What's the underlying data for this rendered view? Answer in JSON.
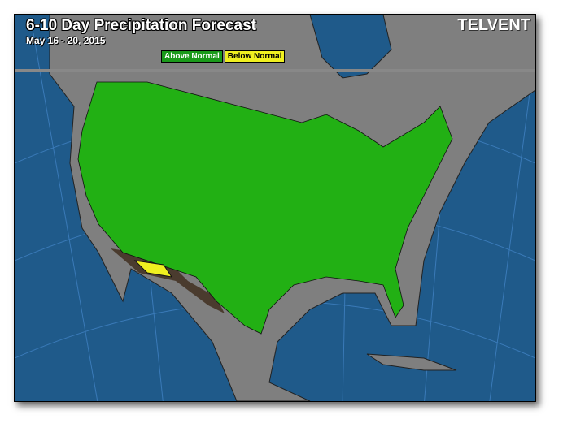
{
  "header": {
    "title": "6-10 Day Precipitation Forecast",
    "date_range": "May 16 - 20, 2015",
    "logo": "TELVENT"
  },
  "legend": [
    {
      "label": "Above Normal",
      "color": "#1a9a1a"
    },
    {
      "label": "Below Normal",
      "color": "#f0f020"
    }
  ],
  "colors": {
    "ocean": "#1f5a8a",
    "land": "#7f7f7f",
    "above_normal": "#22b014",
    "below_normal": "#f0f020",
    "dry_edge": "#4a3b2e"
  }
}
